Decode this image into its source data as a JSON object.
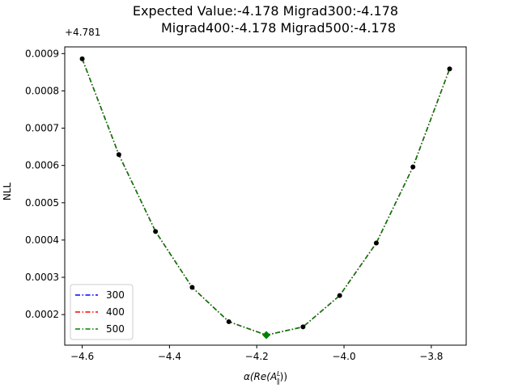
{
  "chart_data": {
    "type": "line",
    "title_lines": [
      "Expected Value:-4.178       Migrad300:-4.178",
      "Migrad400:-4.178       Migrad500:-4.178"
    ],
    "xlabel": "α(Re(A",
    "xlabel_sup": "L",
    "xlabel_sub": "∥",
    "xlabel_close": "))",
    "ylabel": "NLL",
    "y_offset_label": "+4.781",
    "xlim": [
      -4.64,
      -3.72
    ],
    "ylim": [
      0.000118,
      0.000918
    ],
    "x_ticks": [
      -4.6,
      -4.4,
      -4.2,
      -4.0,
      -3.8
    ],
    "x_tick_labels": [
      "−4.6",
      "−4.4",
      "−4.2",
      "−4.0",
      "−3.8"
    ],
    "y_ticks": [
      0.0002,
      0.0003,
      0.0004,
      0.0005,
      0.0006,
      0.0007,
      0.0008,
      0.0009
    ],
    "y_tick_labels": [
      "0.0002",
      "0.0003",
      "0.0004",
      "0.0005",
      "0.0006",
      "0.0007",
      "0.0008",
      "0.0009"
    ],
    "x": [
      -4.6,
      -4.516,
      -4.432,
      -4.348,
      -4.264,
      -4.178,
      -4.094,
      -4.01,
      -3.926,
      -3.842,
      -3.758
    ],
    "y": [
      0.000886,
      0.000629,
      0.000423,
      0.000273,
      0.000181,
      0.000145,
      0.000167,
      0.000251,
      0.000392,
      0.000596,
      0.000859
    ],
    "series": [
      {
        "name": "300",
        "color": "#0000ff"
      },
      {
        "name": "400",
        "color": "#ff0000"
      },
      {
        "name": "500",
        "color": "#008000"
      }
    ],
    "minimum": {
      "x": -4.178,
      "y": 0.000145,
      "color": "#008000"
    },
    "point_color": "#000000",
    "grid": false,
    "legend_position": "lower-left"
  }
}
